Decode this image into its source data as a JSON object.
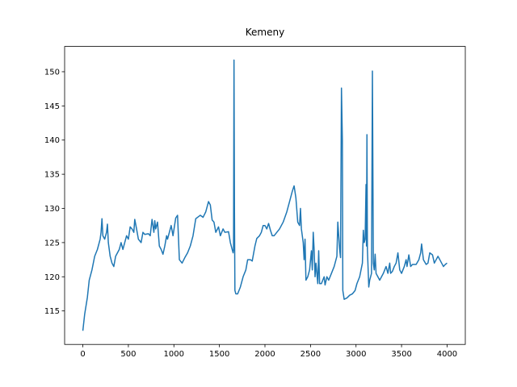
{
  "chart_data": {
    "type": "line",
    "title": "Kemeny",
    "color": "#1f77b4",
    "x": [
      0,
      20,
      50,
      70,
      100,
      130,
      160,
      190,
      200,
      210,
      220,
      240,
      260,
      270,
      280,
      300,
      320,
      340,
      360,
      400,
      420,
      440,
      460,
      480,
      500,
      520,
      540,
      560,
      570,
      590,
      610,
      640,
      660,
      680,
      720,
      740,
      760,
      780,
      790,
      800,
      820,
      840,
      860,
      880,
      900,
      920,
      930,
      950,
      970,
      990,
      1020,
      1040,
      1060,
      1090,
      1120,
      1150,
      1180,
      1210,
      1240,
      1270,
      1290,
      1320,
      1350,
      1380,
      1400,
      1420,
      1440,
      1460,
      1490,
      1510,
      1540,
      1560,
      1600,
      1620,
      1640,
      1650,
      1655,
      1660,
      1665,
      1670,
      1680,
      1700,
      1730,
      1760,
      1790,
      1810,
      1840,
      1860,
      1890,
      1910,
      1940,
      1960,
      1980,
      2000,
      2020,
      2040,
      2060,
      2080,
      2100,
      2130,
      2160,
      2200,
      2240,
      2270,
      2300,
      2320,
      2340,
      2360,
      2380,
      2390,
      2400,
      2420,
      2430,
      2440,
      2450,
      2470,
      2490,
      2510,
      2520,
      2530,
      2540,
      2550,
      2560,
      2570,
      2580,
      2590,
      2600,
      2620,
      2650,
      2660,
      2680,
      2700,
      2730,
      2760,
      2790,
      2800,
      2810,
      2820,
      2830,
      2840,
      2850,
      2855,
      2870,
      2900,
      2930,
      2960,
      2990,
      3010,
      3040,
      3070,
      3080,
      3090,
      3100,
      3110,
      3115,
      3120,
      3125,
      3140,
      3150,
      3170,
      3180,
      3190,
      3200,
      3210,
      3220,
      3240,
      3260,
      3280,
      3300,
      3330,
      3350,
      3370,
      3380,
      3400,
      3420,
      3440,
      3460,
      3480,
      3500,
      3530,
      3550,
      3560,
      3580,
      3600,
      3620,
      3660,
      3690,
      3710,
      3720,
      3740,
      3770,
      3790,
      3810,
      3840,
      3860,
      3880,
      3900,
      3920,
      3940,
      3960,
      3980,
      4000
    ],
    "values": [
      112.1,
      114.5,
      117,
      119.5,
      121,
      123,
      124,
      125.5,
      126.5,
      128.5,
      126,
      125.5,
      126.5,
      127.7,
      125,
      123,
      122,
      121.5,
      123,
      124,
      125,
      124,
      125,
      126,
      125.5,
      127.3,
      127,
      126.5,
      128.4,
      127,
      125.5,
      125,
      126.5,
      126.2,
      126.3,
      126,
      128.4,
      126.5,
      128.2,
      127,
      128,
      124.5,
      124,
      123.3,
      124.5,
      126,
      125.5,
      126.5,
      127.5,
      126,
      128.6,
      129,
      122.5,
      122,
      122.8,
      123.5,
      124.5,
      126,
      128.5,
      128.8,
      129,
      128.7,
      129.5,
      131,
      130.5,
      128.3,
      128,
      126.5,
      127.3,
      126,
      127,
      126.5,
      126.6,
      125,
      124,
      123.5,
      124,
      151.7,
      130,
      118,
      117.5,
      117.5,
      118.5,
      120,
      121,
      122.5,
      122.5,
      122.3,
      124.5,
      125.6,
      126,
      126.5,
      127.5,
      127.5,
      127,
      127.8,
      126.8,
      126,
      126,
      126.5,
      127,
      128,
      129.5,
      131,
      132.5,
      133.3,
      131.5,
      128,
      127.5,
      130,
      127,
      125,
      122.5,
      125.5,
      119.5,
      120,
      121,
      123.8,
      121,
      126.5,
      124,
      120,
      122,
      120.5,
      119,
      123.8,
      119,
      119,
      120,
      118.8,
      120,
      119.5,
      120.5,
      121.5,
      123,
      128,
      126,
      124,
      122.8,
      147.6,
      140,
      118,
      116.7,
      116.9,
      117.3,
      117.5,
      118,
      119,
      120,
      122,
      126.8,
      125,
      125.5,
      133.5,
      124.5,
      140.8,
      124,
      118.5,
      119.5,
      120.5,
      150.1,
      122,
      121,
      123.3,
      120.5,
      120,
      119.5,
      120,
      120.5,
      121.5,
      120.5,
      122,
      120.5,
      120.8,
      121.5,
      122,
      123.5,
      121,
      120.5,
      121.5,
      122.5,
      121.5,
      123.2,
      121.5,
      121.8,
      121.8,
      122.5,
      123.5,
      124.8,
      122.5,
      121.8,
      122,
      123.5,
      123.2,
      122,
      122.5,
      123,
      122.5,
      122,
      121.5,
      121.8,
      122
    ],
    "xlim": [
      -200,
      4200
    ],
    "ylim": [
      110.1,
      153.7
    ],
    "xticks": [
      0,
      500,
      1000,
      1500,
      2000,
      2500,
      3000,
      3500,
      4000
    ],
    "yticks": [
      115,
      120,
      125,
      130,
      135,
      140,
      145,
      150
    ]
  }
}
